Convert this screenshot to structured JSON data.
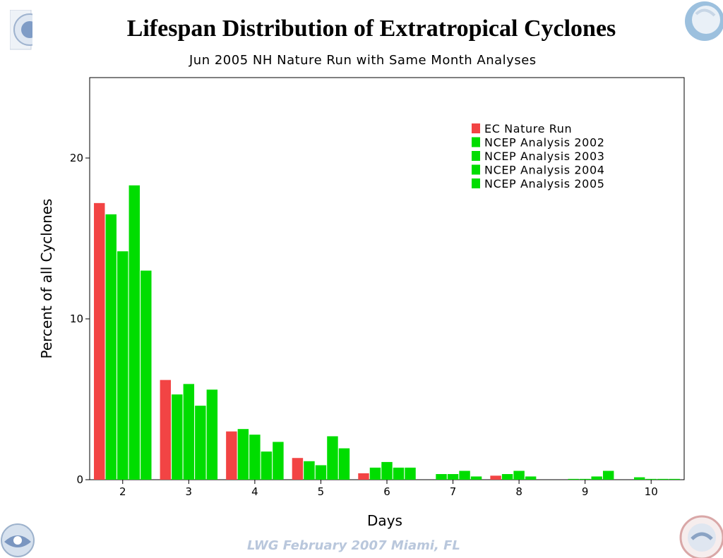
{
  "slide": {
    "title": "Lifespan Distribution of Extratropical Cyclones",
    "footer": "LWG  February 2007 Miami, FL",
    "logos": [
      "noaa-seal-icon",
      "satellite-earth-icon",
      "noaa-logo-icon",
      "national-weather-service-logo-icon"
    ]
  },
  "chart_data": {
    "type": "bar",
    "title": "Jun 2005 NH Nature Run with Same Month Analyses",
    "xlabel": "Days",
    "ylabel": "Percent of all Cyclones",
    "categories": [
      "2",
      "3",
      "4",
      "5",
      "6",
      "7",
      "8",
      "9",
      "10"
    ],
    "ylim": [
      0,
      25
    ],
    "xlim": [
      1.5,
      10.5
    ],
    "yticks": [
      0,
      10,
      20
    ],
    "grid": false,
    "legend_position": "top-right",
    "series": [
      {
        "name": "EC Nature Run",
        "color": "#f24444",
        "values": [
          17.2,
          6.2,
          3.0,
          1.35,
          0.4,
          0.0,
          0.25,
          0.0,
          0.0
        ]
      },
      {
        "name": "NCEP Analysis 2002",
        "color": "#00dd00",
        "values": [
          16.5,
          5.3,
          3.15,
          1.15,
          0.75,
          0.35,
          0.35,
          0.05,
          0.15
        ]
      },
      {
        "name": "NCEP Analysis 2003",
        "color": "#00dd00",
        "values": [
          14.2,
          5.95,
          2.8,
          0.9,
          1.1,
          0.35,
          0.55,
          0.05,
          0.05
        ]
      },
      {
        "name": "NCEP Analysis 2004",
        "color": "#00dd00",
        "values": [
          18.3,
          4.6,
          1.75,
          2.7,
          0.75,
          0.55,
          0.2,
          0.2,
          0.05
        ]
      },
      {
        "name": "NCEP Analysis 2005",
        "color": "#00dd00",
        "values": [
          13.0,
          5.6,
          2.35,
          1.95,
          0.75,
          0.2,
          0.0,
          0.55,
          0.05
        ]
      }
    ]
  }
}
